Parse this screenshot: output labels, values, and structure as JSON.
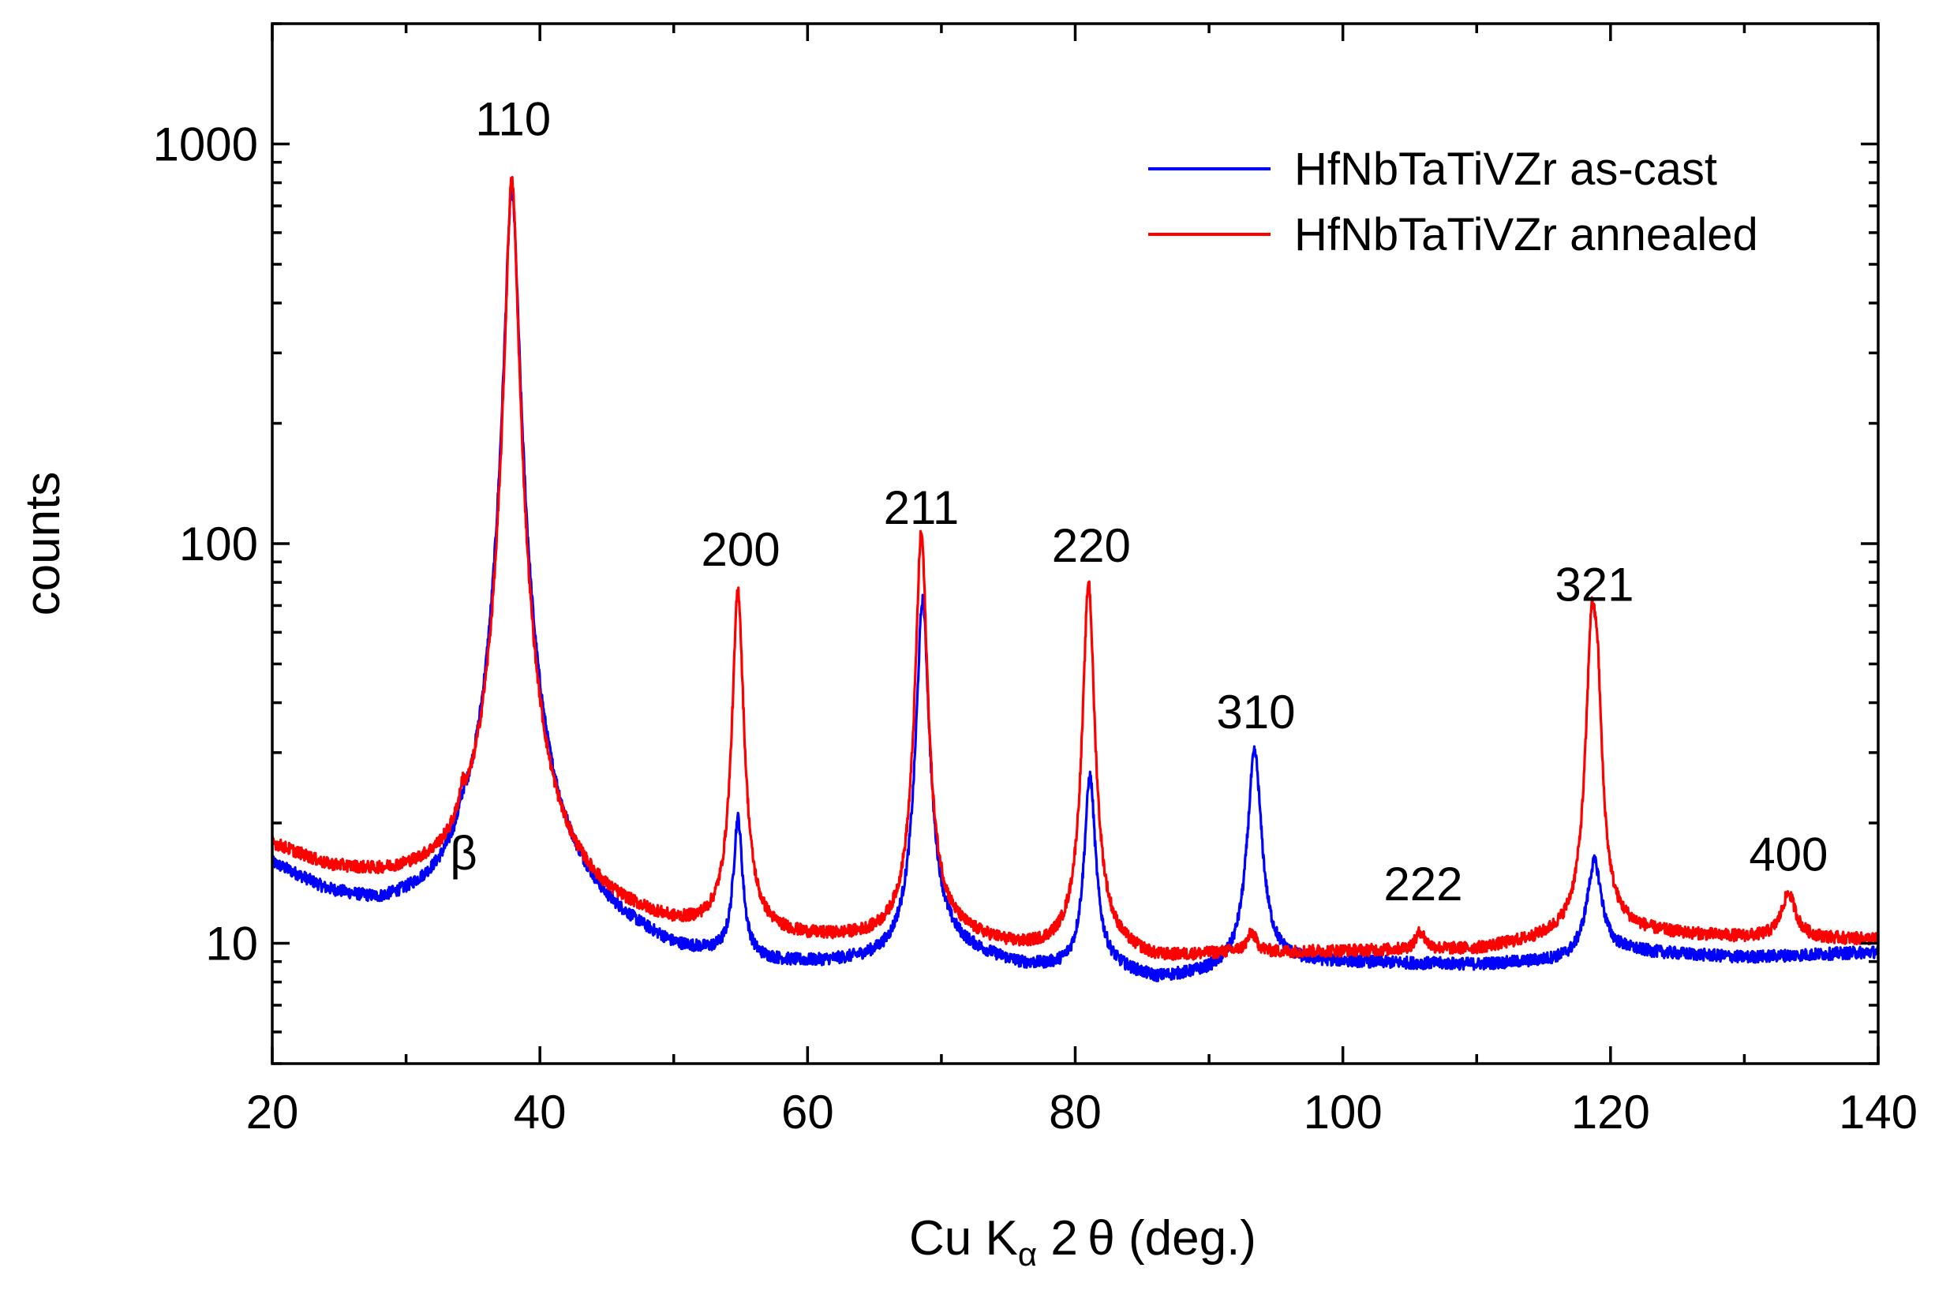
{
  "chart_data": {
    "type": "line",
    "title": "",
    "xlabel": "Cu Kα 2θ (deg.)",
    "xlabel_parts": {
      "main": "Cu K",
      "sub": "α",
      "rest": " 2 θ (deg.)"
    },
    "ylabel": "counts",
    "xlim": [
      20,
      140
    ],
    "ylim": [
      5,
      2000
    ],
    "yscale": "log",
    "grid": false,
    "legend_position": "top-right",
    "x_ticks": [
      20,
      40,
      60,
      80,
      100,
      120,
      140
    ],
    "x_tick_labels": [
      "20",
      "40",
      "60",
      "80",
      "100",
      "120",
      "140"
    ],
    "x_minor_ticks": [
      30,
      50,
      70,
      90,
      110,
      130
    ],
    "y_ticks": [
      10,
      100,
      1000
    ],
    "y_tick_labels": [
      "10",
      "100",
      "1000"
    ],
    "series": [
      {
        "name": "HfNbTaTiVZr as-cast",
        "color": "#0000ff",
        "background": [
          [
            20,
            15.5
          ],
          [
            24,
            13
          ],
          [
            28,
            11.6
          ],
          [
            33,
            11.3
          ],
          [
            36,
            11.9
          ],
          [
            40,
            12.5
          ],
          [
            45,
            10.3
          ],
          [
            50,
            9.0
          ],
          [
            54,
            8.8
          ],
          [
            56,
            8.6
          ],
          [
            60,
            8.6
          ],
          [
            66,
            8.8
          ],
          [
            70,
            9.6
          ],
          [
            76,
            8.6
          ],
          [
            80,
            8.4
          ],
          [
            82,
            8.6
          ],
          [
            86,
            8.0
          ],
          [
            92,
            8.4
          ],
          [
            95,
            8.8
          ],
          [
            100,
            8.9
          ],
          [
            110,
            8.8
          ],
          [
            117,
            9.0
          ],
          [
            121,
            9.5
          ],
          [
            130,
            9.2
          ],
          [
            140,
            9.5
          ]
        ],
        "peaks": [
          [
            34.3,
            13,
            0.35
          ],
          [
            37.9,
            760,
            0.45
          ],
          [
            54.8,
            20,
            0.35
          ],
          [
            68.6,
            72,
            0.4
          ],
          [
            81.1,
            26,
            0.4
          ],
          [
            93.4,
            30,
            0.5
          ],
          [
            118.8,
            16,
            0.6
          ]
        ]
      },
      {
        "name": "HfNbTaTiVZr annealed",
        "color": "#ff0000",
        "background": [
          [
            20,
            17.5
          ],
          [
            24,
            15.2
          ],
          [
            28,
            14.2
          ],
          [
            33,
            13.6
          ],
          [
            36,
            14.2
          ],
          [
            40,
            13.5
          ],
          [
            45,
            11.5
          ],
          [
            50,
            10.5
          ],
          [
            54,
            10.2
          ],
          [
            56,
            10.1
          ],
          [
            60,
            10.0
          ],
          [
            66,
            10.0
          ],
          [
            70,
            10.4
          ],
          [
            76,
            9.5
          ],
          [
            80,
            9.4
          ],
          [
            82,
            9.6
          ],
          [
            86,
            9.0
          ],
          [
            92,
            9.4
          ],
          [
            95,
            9.4
          ],
          [
            100,
            9.5
          ],
          [
            110,
            9.6
          ],
          [
            117,
            10.3
          ],
          [
            121,
            10.6
          ],
          [
            130,
            10.3
          ],
          [
            140,
            10.2
          ]
        ],
        "peaks": [
          [
            34.2,
            16.5,
            0.25
          ],
          [
            37.9,
            810,
            0.4
          ],
          [
            54.8,
            76,
            0.35
          ],
          [
            68.5,
            106,
            0.35
          ],
          [
            81.0,
            80,
            0.35
          ],
          [
            93.2,
            10.5,
            0.4
          ],
          [
            105.8,
            10.6,
            0.4
          ],
          [
            118.6,
            61,
            0.35
          ],
          [
            119.0,
            38,
            0.3
          ],
          [
            133.3,
            13.3,
            0.6
          ]
        ]
      }
    ],
    "annotations": [
      {
        "text": "β",
        "x": 34.3,
        "y": 15.3
      },
      {
        "text": "110",
        "x": 38.0,
        "y": 1050
      },
      {
        "text": "200",
        "x": 55.0,
        "y": 88
      },
      {
        "text": "211",
        "x": 68.5,
        "y": 112
      },
      {
        "text": "220",
        "x": 81.2,
        "y": 90
      },
      {
        "text": "310",
        "x": 93.5,
        "y": 34.5
      },
      {
        "text": "222",
        "x": 106.0,
        "y": 12.8
      },
      {
        "text": "321",
        "x": 118.8,
        "y": 72
      },
      {
        "text": "400",
        "x": 133.3,
        "y": 15.2
      }
    ]
  }
}
